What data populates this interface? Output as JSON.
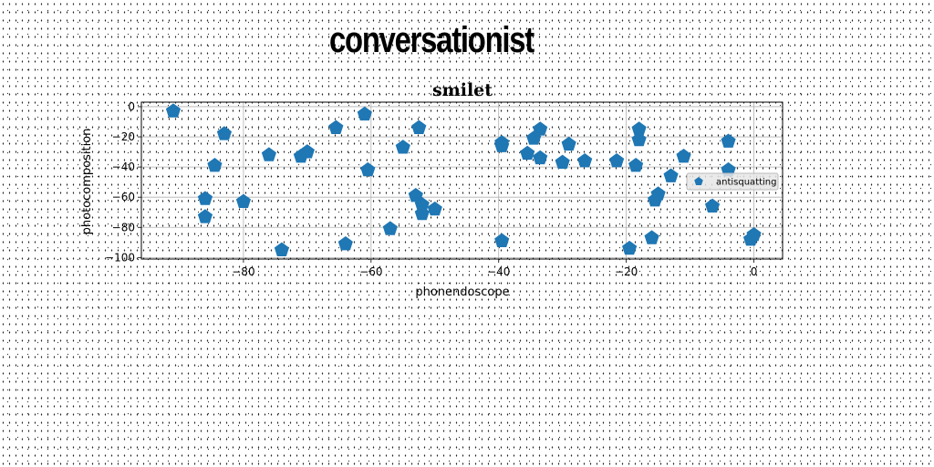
{
  "banner_title": "conversationist",
  "chart_data": {
    "type": "scatter",
    "title": "smilet",
    "xlabel": "phonendoscope",
    "ylabel": "photocomposition",
    "xlim": [
      -96,
      4.5
    ],
    "ylim": [
      -101,
      3
    ],
    "xticks": [
      -80,
      -60,
      -40,
      -20,
      0
    ],
    "yticks": [
      0,
      -20,
      -40,
      -60,
      -80,
      -100
    ],
    "grid": true,
    "legend_position": "right",
    "marker": "pentagon",
    "color": "#1f77b4",
    "series": [
      {
        "name": "antisquatting",
        "points": [
          [
            -91,
            -3
          ],
          [
            -83,
            -18
          ],
          [
            -84.5,
            -39
          ],
          [
            -86,
            -61
          ],
          [
            -86,
            -73
          ],
          [
            -80,
            -63
          ],
          [
            -76,
            -32
          ],
          [
            -74,
            -95
          ],
          [
            -71,
            -33
          ],
          [
            -70,
            -30
          ],
          [
            -65.5,
            -14
          ],
          [
            -64,
            -91
          ],
          [
            -61,
            -5
          ],
          [
            -60.5,
            -42
          ],
          [
            -57,
            -81
          ],
          [
            -55,
            -27
          ],
          [
            -53,
            -59
          ],
          [
            -52.5,
            -14
          ],
          [
            -52,
            -65
          ],
          [
            -52,
            -71
          ],
          [
            -50,
            -68
          ],
          [
            -39.5,
            -24
          ],
          [
            -39.5,
            -26
          ],
          [
            -39.5,
            -89
          ],
          [
            -35.5,
            -31
          ],
          [
            -34.5,
            -21
          ],
          [
            -33.5,
            -34
          ],
          [
            -33.5,
            -15
          ],
          [
            -30,
            -37
          ],
          [
            -29,
            -25
          ],
          [
            -26.5,
            -36
          ],
          [
            -21.5,
            -36
          ],
          [
            -19.5,
            -94
          ],
          [
            -18.5,
            -39
          ],
          [
            -18,
            -15
          ],
          [
            -18,
            -22
          ],
          [
            -16,
            -87
          ],
          [
            -15.5,
            -62
          ],
          [
            -15,
            -58
          ],
          [
            -13,
            -46
          ],
          [
            -11,
            -33
          ],
          [
            -6.5,
            -66
          ],
          [
            -4,
            -23
          ],
          [
            -4,
            -42
          ],
          [
            -0.5,
            -88
          ],
          [
            0,
            -85
          ]
        ]
      }
    ]
  }
}
